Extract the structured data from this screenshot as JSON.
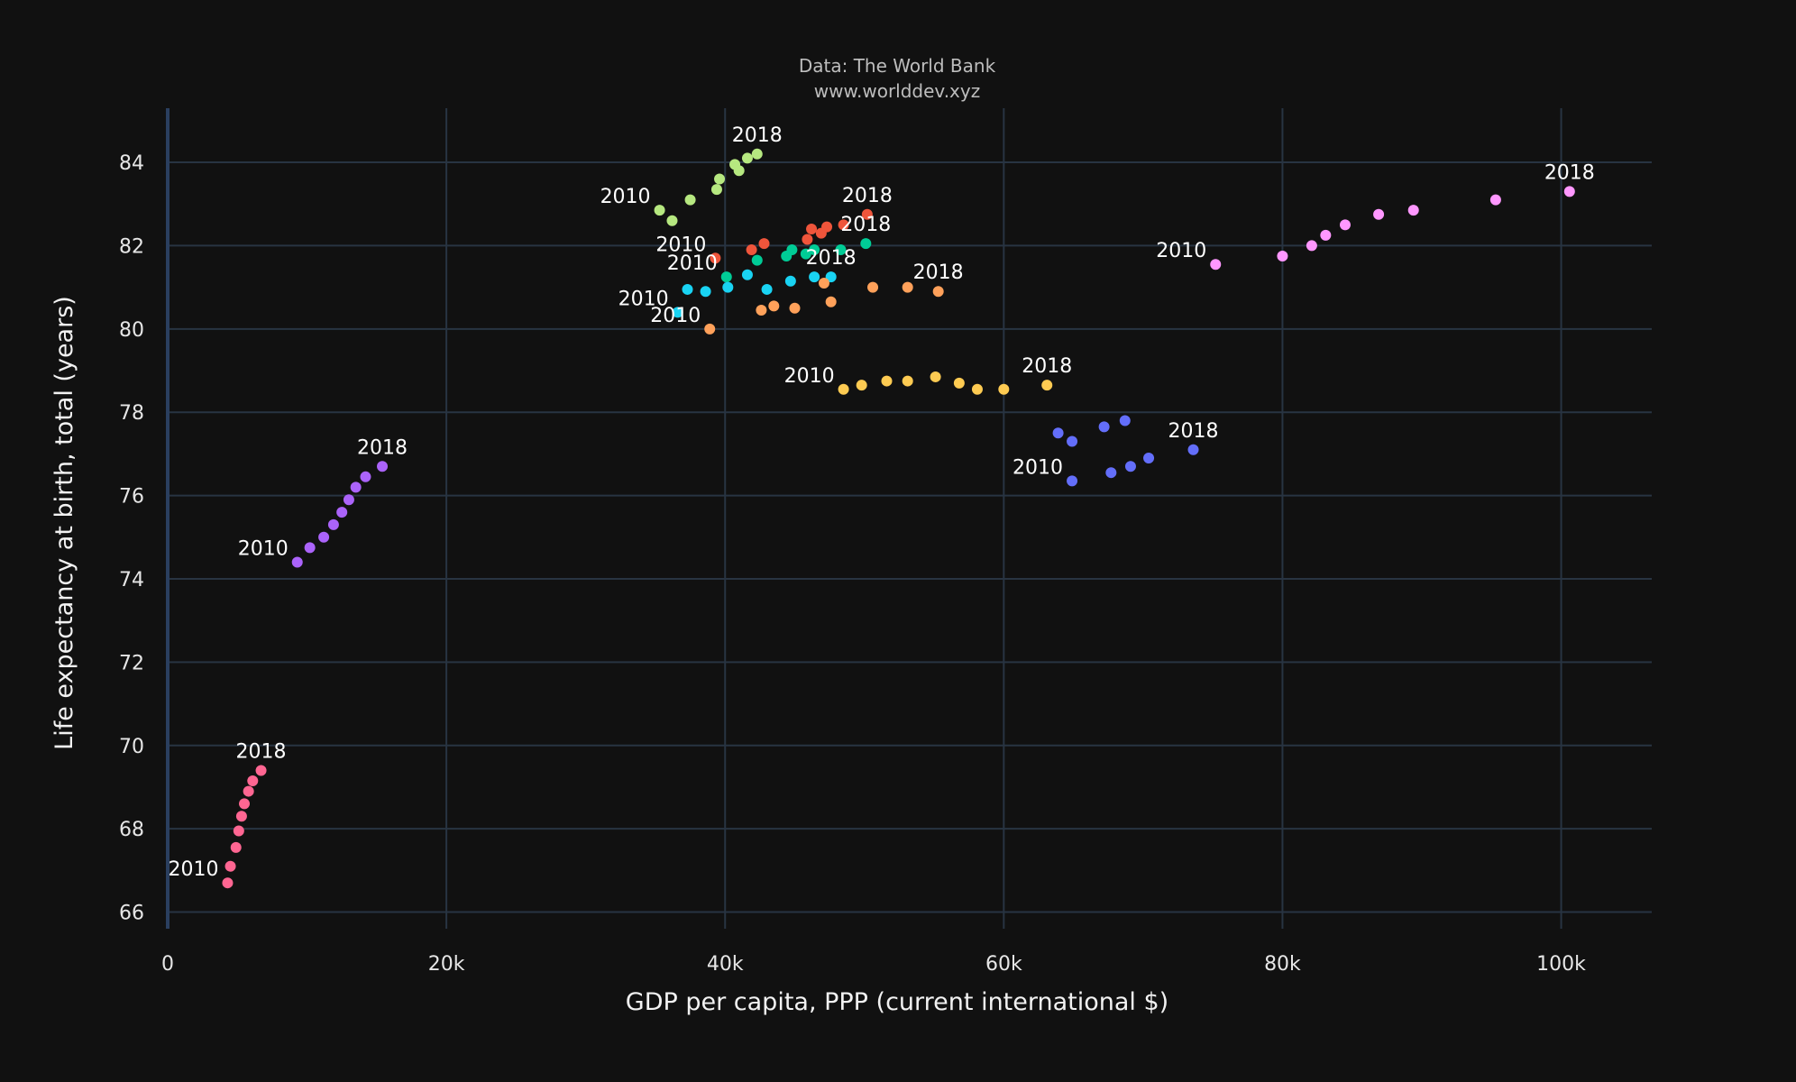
{
  "chart_data": {
    "type": "scatter",
    "annotation": [
      "Data: The World Bank",
      "www.worlddev.xyz"
    ],
    "xlabel": "GDP per capita, PPP (current international $)",
    "ylabel": "Life expectancy at birth, total (years)",
    "xlim": [
      0,
      106500
    ],
    "ylim": [
      65.6,
      85.3
    ],
    "xticks": [
      0,
      20000,
      40000,
      60000,
      80000,
      100000
    ],
    "xtick_labels": [
      "0",
      "20k",
      "40k",
      "60k",
      "80k",
      "100k"
    ],
    "yticks": [
      66,
      68,
      70,
      72,
      74,
      76,
      78,
      80,
      82,
      84
    ],
    "ytick_labels": [
      "66",
      "68",
      "70",
      "72",
      "74",
      "76",
      "78",
      "80",
      "82",
      "84"
    ],
    "grid": true,
    "colors": {
      "background": "#111111",
      "grid": "#283442",
      "axis_line": "#2a3f5f"
    },
    "series": [
      {
        "color": "#ef553b",
        "x": [
          39300,
          41900,
          42800,
          45900,
          46200,
          46900,
          47300,
          48500,
          50200
        ],
        "y": [
          81.7,
          81.9,
          82.05,
          82.15,
          82.4,
          82.3,
          82.45,
          82.5,
          82.75
        ],
        "label_first": "2010",
        "label_last": "2018"
      },
      {
        "color": "#00cc96",
        "x": [
          40100,
          42300,
          44400,
          44800,
          45800,
          46400,
          48300,
          50100
        ],
        "y": [
          81.25,
          81.65,
          81.75,
          81.9,
          81.8,
          81.9,
          81.9,
          82.05
        ],
        "label_first": "2010",
        "label_last": "2018"
      },
      {
        "color": "#19d3f3",
        "x": [
          36600,
          37300,
          38600,
          40200,
          41600,
          43000,
          44700,
          46400,
          47600
        ],
        "y": [
          80.4,
          80.95,
          80.9,
          81.0,
          81.3,
          80.95,
          81.15,
          81.25,
          81.25
        ],
        "label_first": "2010",
        "label_last": "2018"
      },
      {
        "color": "#ffa15a",
        "x": [
          38900,
          42600,
          43500,
          45000,
          47600,
          47100,
          50600,
          53100,
          55300
        ],
        "y": [
          80.0,
          80.45,
          80.55,
          80.5,
          80.65,
          81.1,
          81.0,
          81.0,
          80.9
        ],
        "label_first": "2010",
        "label_last": "2018"
      },
      {
        "color": "#b6e880",
        "x": [
          35300,
          36200,
          37500,
          39400,
          39600,
          40700,
          41000,
          41600,
          42300
        ],
        "y": [
          82.85,
          82.6,
          83.1,
          83.35,
          83.6,
          83.95,
          83.8,
          84.1,
          84.2
        ],
        "label_first": "2010",
        "label_last": "2018"
      },
      {
        "color": "#fecb52",
        "x": [
          48500,
          49800,
          51600,
          53100,
          55100,
          56800,
          58100,
          60000,
          63100
        ],
        "y": [
          78.55,
          78.65,
          78.75,
          78.75,
          78.85,
          78.7,
          78.55,
          78.55,
          78.65
        ],
        "label_first": "2010",
        "label_last": "2018"
      },
      {
        "color": "#636efa",
        "x": [
          64900,
          63900,
          64900,
          67700,
          69100,
          70400,
          67200,
          68700,
          73600
        ],
        "y": [
          76.35,
          77.5,
          77.3,
          76.55,
          76.7,
          76.9,
          77.65,
          77.8,
          77.1
        ],
        "label_first": "2010",
        "label_last": "2018"
      },
      {
        "color": "#ff97ff",
        "x": [
          75200,
          80000,
          82100,
          83100,
          84500,
          86900,
          89400,
          95300,
          100600
        ],
        "y": [
          81.55,
          81.75,
          82.0,
          82.25,
          82.5,
          82.75,
          82.85,
          83.1,
          83.3
        ],
        "label_first": "2010",
        "label_last": "2018"
      },
      {
        "color": "#ab63fa",
        "x": [
          9300,
          10200,
          11200,
          11900,
          12500,
          13000,
          13500,
          14200,
          15400
        ],
        "y": [
          74.4,
          74.75,
          75.0,
          75.3,
          75.6,
          75.9,
          76.2,
          76.45,
          76.7
        ],
        "label_first": "2010",
        "label_last": "2018"
      },
      {
        "color": "#ff6692",
        "x": [
          4300,
          4500,
          4900,
          5100,
          5300,
          5500,
          5800,
          6100,
          6700
        ],
        "y": [
          66.7,
          67.1,
          67.55,
          67.95,
          68.3,
          68.6,
          68.9,
          69.15,
          69.4
        ],
        "label_first": "2010",
        "label_last": "2018"
      }
    ]
  }
}
